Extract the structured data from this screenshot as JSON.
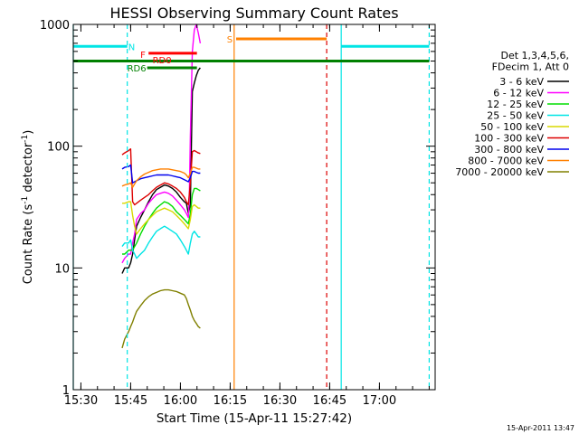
{
  "chart_data": {
    "type": "line",
    "title": "HESSI Observing Summary Count Rates",
    "xlabel": "Start Time (15-Apr-11 15:27:42)",
    "ylabel_main": "Count Rate (s",
    "ylabel_sup1": "-1",
    "ylabel_mid": " detector",
    "ylabel_sup2": "-1",
    "ylabel_end": ")",
    "yscale": "log",
    "ylim": [
      1,
      1000
    ],
    "xlim": [
      15.4617,
      17.28
    ],
    "x_unit": "hour of day (UT)",
    "xticks": [
      {
        "value": 15.5,
        "label": "15:30"
      },
      {
        "value": 15.75,
        "label": "15:45"
      },
      {
        "value": 16.0,
        "label": "16:00"
      },
      {
        "value": 16.25,
        "label": "16:15"
      },
      {
        "value": 16.5,
        "label": "16:30"
      },
      {
        "value": 16.75,
        "label": "16:45"
      },
      {
        "value": 17.0,
        "label": "17:00"
      }
    ],
    "yticks": [
      {
        "value": 1,
        "label": "1"
      },
      {
        "value": 10,
        "label": "10"
      },
      {
        "value": 100,
        "label": "100"
      },
      {
        "value": 1000,
        "label": "1000"
      }
    ],
    "timestamp": "15-Apr-2011 13:47",
    "legend": {
      "placement": "right",
      "header": [
        "Det 1,3,4,5,6,",
        "FDecim 1, Att 0"
      ],
      "entries": [
        {
          "label": "3 - 6 keV",
          "color": "#000000"
        },
        {
          "label": "6 - 12 keV",
          "color": "#ff00ff"
        },
        {
          "label": "12 - 25 keV",
          "color": "#00dd00"
        },
        {
          "label": "25 - 50 keV",
          "color": "#00e5e5"
        },
        {
          "label": "50 - 100 keV",
          "color": "#d8d800"
        },
        {
          "label": "100 - 300 keV",
          "color": "#dd0000"
        },
        {
          "label": "300 - 800 keV",
          "color": "#0000ee"
        },
        {
          "label": "800 - 7000 keV",
          "color": "#ff8000"
        },
        {
          "label": "7000 - 20000 keV",
          "color": "#808000"
        }
      ]
    },
    "series": [
      {
        "name": "3 - 6 keV",
        "color": "#000000",
        "x": [
          15.707,
          15.72,
          15.74,
          15.75,
          15.76,
          15.77,
          15.78,
          15.8,
          15.82,
          15.84,
          15.86,
          15.88,
          15.9,
          15.92,
          15.94,
          15.96,
          15.98,
          16.0,
          16.02,
          16.03,
          16.04,
          16.05,
          16.06,
          16.07,
          16.08,
          16.09,
          16.1
        ],
        "y": [
          9,
          10,
          10,
          11,
          13,
          17,
          22,
          26,
          30,
          35,
          40,
          44,
          46,
          48,
          47,
          45,
          42,
          38,
          35,
          34,
          28,
          33,
          280,
          330,
          380,
          420,
          440
        ]
      },
      {
        "name": "6 - 12 keV",
        "color": "#ff00ff",
        "x": [
          15.707,
          15.72,
          15.74,
          15.75,
          15.76,
          15.77,
          15.78,
          15.8,
          15.82,
          15.84,
          15.86,
          15.88,
          15.9,
          15.92,
          15.94,
          15.96,
          15.98,
          16.0,
          16.02,
          16.03,
          16.04,
          16.045,
          16.05,
          16.06,
          16.07,
          16.08,
          16.09,
          16.1
        ],
        "y": [
          11,
          12,
          13,
          13,
          16,
          19,
          25,
          28,
          30,
          34,
          37,
          40,
          41,
          42,
          41,
          39,
          36,
          33,
          30,
          28,
          26,
          40,
          120,
          600,
          900,
          1000,
          850,
          700
        ]
      },
      {
        "name": "12 - 25 keV",
        "color": "#00dd00",
        "x": [
          15.707,
          15.72,
          15.74,
          15.75,
          15.76,
          15.77,
          15.78,
          15.8,
          15.82,
          15.84,
          15.86,
          15.88,
          15.9,
          15.92,
          15.94,
          15.96,
          15.98,
          16.0,
          16.02,
          16.03,
          16.04,
          16.05,
          16.06,
          16.07,
          16.08,
          16.09,
          16.1
        ],
        "y": [
          13,
          13,
          14,
          14,
          14,
          15,
          16,
          19,
          22,
          25,
          28,
          31,
          33,
          35,
          34,
          32,
          29,
          27,
          25,
          24,
          23,
          28,
          40,
          45,
          45,
          44,
          43
        ]
      },
      {
        "name": "25 - 50 keV",
        "color": "#00e5e5",
        "x": [
          15.707,
          15.72,
          15.74,
          15.75,
          15.76,
          15.77,
          15.78,
          15.8,
          15.82,
          15.84,
          15.86,
          15.88,
          15.9,
          15.92,
          15.94,
          15.96,
          15.98,
          16.0,
          16.02,
          16.03,
          16.04,
          16.05,
          16.06,
          16.07,
          16.08,
          16.09,
          16.1
        ],
        "y": [
          15,
          16,
          16,
          17,
          14,
          13,
          12,
          13,
          14,
          16,
          18,
          20,
          21,
          22,
          21,
          20,
          19,
          17,
          15,
          14,
          13,
          16,
          19,
          20,
          19,
          18,
          18
        ]
      },
      {
        "name": "50 - 100 keV",
        "color": "#d8d800",
        "x": [
          15.707,
          15.72,
          15.74,
          15.75,
          15.76,
          15.77,
          15.78,
          15.8,
          15.82,
          15.84,
          15.86,
          15.88,
          15.9,
          15.92,
          15.94,
          15.96,
          15.98,
          16.0,
          16.02,
          16.03,
          16.04,
          16.05,
          16.06,
          16.07,
          16.08,
          16.09,
          16.1
        ],
        "y": [
          34,
          34,
          35,
          35,
          27,
          22,
          19,
          21,
          23,
          25,
          27,
          29,
          30,
          31,
          30,
          29,
          27,
          25,
          23,
          22,
          21,
          25,
          32,
          33,
          32,
          31,
          31
        ]
      },
      {
        "name": "100 - 300 keV",
        "color": "#dd0000",
        "x": [
          15.707,
          15.72,
          15.74,
          15.75,
          15.76,
          15.77,
          15.78,
          15.8,
          15.82,
          15.84,
          15.86,
          15.88,
          15.9,
          15.92,
          15.94,
          15.96,
          15.98,
          16.0,
          16.02,
          16.03,
          16.04,
          16.05,
          16.06,
          16.07,
          16.08,
          16.09,
          16.1
        ],
        "y": [
          85,
          88,
          92,
          95,
          35,
          33,
          34,
          36,
          38,
          40,
          43,
          46,
          48,
          50,
          49,
          47,
          45,
          42,
          38,
          35,
          33,
          50,
          90,
          92,
          90,
          88,
          87
        ]
      },
      {
        "name": "300 - 800 keV",
        "color": "#0000ee",
        "x": [
          15.707,
          15.72,
          15.74,
          15.75,
          15.76,
          15.77,
          15.78,
          15.8,
          15.82,
          15.84,
          15.86,
          15.88,
          15.9,
          15.92,
          15.94,
          15.96,
          15.98,
          16.0,
          16.02,
          16.03,
          16.04,
          16.05,
          16.06,
          16.07,
          16.08,
          16.09,
          16.1
        ],
        "y": [
          65,
          67,
          68,
          70,
          50,
          51,
          52,
          54,
          55,
          56,
          57,
          58,
          58,
          58,
          58,
          57,
          56,
          55,
          53,
          52,
          51,
          55,
          62,
          62,
          61,
          60,
          60
        ]
      },
      {
        "name": "800 - 7000 keV",
        "color": "#ff8000",
        "x": [
          15.707,
          15.72,
          15.74,
          15.75,
          15.76,
          15.77,
          15.78,
          15.8,
          15.82,
          15.84,
          15.86,
          15.88,
          15.9,
          15.92,
          15.94,
          15.96,
          15.98,
          16.0,
          16.02,
          16.03,
          16.04,
          16.05,
          16.06,
          16.07,
          16.08,
          16.09,
          16.1
        ],
        "y": [
          47,
          48,
          49,
          50,
          46,
          49,
          52,
          56,
          59,
          61,
          63,
          64,
          65,
          65,
          65,
          64,
          63,
          62,
          60,
          58,
          55,
          60,
          67,
          67,
          66,
          65,
          65
        ]
      },
      {
        "name": "7000 - 20000 keV",
        "color": "#808000",
        "x": [
          15.707,
          15.72,
          15.74,
          15.75,
          15.76,
          15.77,
          15.78,
          15.8,
          15.82,
          15.84,
          15.86,
          15.88,
          15.9,
          15.92,
          15.94,
          15.96,
          15.98,
          16.0,
          16.02,
          16.03,
          16.04,
          16.05,
          16.06,
          16.07,
          16.08,
          16.09,
          16.1
        ],
        "y": [
          2.2,
          2.6,
          3.0,
          3.3,
          3.6,
          4.0,
          4.4,
          4.9,
          5.4,
          5.8,
          6.1,
          6.3,
          6.5,
          6.6,
          6.6,
          6.5,
          6.4,
          6.2,
          6.0,
          5.6,
          5.0,
          4.5,
          4.0,
          3.7,
          3.5,
          3.3,
          3.2
        ]
      }
    ],
    "markers": {
      "segments": [
        {
          "label": "N",
          "color": "#00e5e5",
          "y": 660,
          "ranges": [
            [
              15.4617,
              15.733
            ],
            [
              16.808,
              17.25
            ]
          ]
        },
        {
          "label": "F",
          "color": "#ff0000",
          "y": 580,
          "ranges": [
            [
              15.84,
              16.083
            ]
          ]
        },
        {
          "label": "RD0",
          "color": "#ff0000",
          "y": 580,
          "ranges": []
        },
        {
          "label": "",
          "color": "#008000",
          "y": 500,
          "ranges": [
            [
              15.4617,
              17.25
            ]
          ]
        },
        {
          "label": "RD6",
          "color": "#008000",
          "y": 440,
          "ranges": [
            [
              15.833,
              16.083
            ]
          ]
        },
        {
          "label": "S",
          "color": "#ff8000",
          "y": 760,
          "ranges": [
            [
              16.28,
              16.735
            ]
          ]
        }
      ],
      "vlines": [
        {
          "x": 15.4617,
          "color": "#00e5e5",
          "style": "solid"
        },
        {
          "x": 15.733,
          "color": "#00e5e5",
          "style": "dashed"
        },
        {
          "x": 16.27,
          "color": "#ff8000",
          "style": "solid"
        },
        {
          "x": 16.735,
          "color": "#dd0000",
          "style": "dashed"
        },
        {
          "x": 16.808,
          "color": "#00e5e5",
          "style": "solid"
        },
        {
          "x": 17.25,
          "color": "#00e5e5",
          "style": "dashed"
        }
      ]
    }
  }
}
